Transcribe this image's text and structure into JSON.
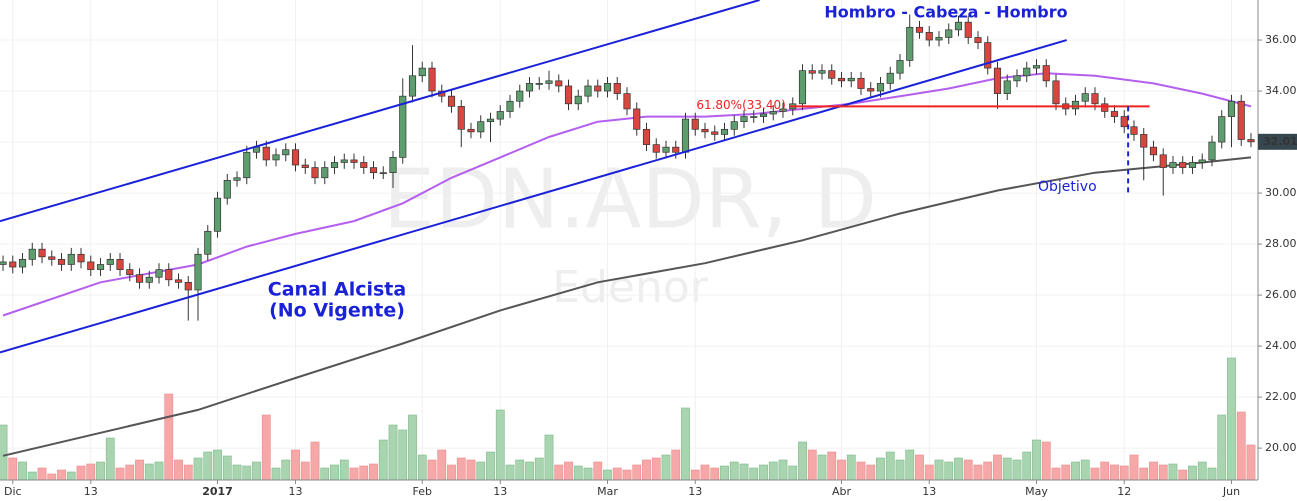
{
  "chart_data": {
    "type": "candlestick",
    "watermark": "EDN.ADR, D",
    "subtitle": "Edenor",
    "categories": [
      null,
      "Dic",
      null,
      null,
      null,
      null,
      null,
      null,
      null,
      "13",
      null,
      null,
      null,
      null,
      null,
      null,
      null,
      null,
      null,
      null,
      null,
      null,
      "2017",
      null,
      null,
      null,
      null,
      null,
      null,
      null,
      "13",
      null,
      null,
      null,
      null,
      null,
      null,
      null,
      null,
      null,
      null,
      null,
      null,
      "Feb",
      null,
      null,
      null,
      null,
      null,
      null,
      null,
      "13",
      null,
      null,
      null,
      null,
      null,
      null,
      null,
      null,
      null,
      null,
      "Mar",
      null,
      null,
      null,
      null,
      null,
      null,
      null,
      null,
      "13",
      null,
      null,
      null,
      null,
      null,
      null,
      null,
      null,
      null,
      null,
      null,
      null,
      null,
      null,
      "Abr",
      null,
      null,
      null,
      null,
      null,
      null,
      null,
      null,
      "13",
      null,
      null,
      null,
      null,
      null,
      null,
      null,
      null,
      null,
      null,
      "May",
      null,
      null,
      null,
      null,
      null,
      null,
      null,
      null,
      "12",
      null,
      null,
      null,
      null,
      null,
      null,
      null,
      null,
      null,
      null,
      "Jun",
      null,
      null
    ],
    "open": [
      27.2,
      27.3,
      27.1,
      27.4,
      27.8,
      27.5,
      27.4,
      27.2,
      27.6,
      27.3,
      27.0,
      27.2,
      27.4,
      27.0,
      26.8,
      26.5,
      26.7,
      27.0,
      26.6,
      26.5,
      26.2,
      27.6,
      28.5,
      29.8,
      30.5,
      30.6,
      31.6,
      31.8,
      31.3,
      31.5,
      31.7,
      31.1,
      31.0,
      30.6,
      31.0,
      31.2,
      31.3,
      31.2,
      31.0,
      30.8,
      30.8,
      31.4,
      33.8,
      34.6,
      34.9,
      34.0,
      33.8,
      33.4,
      32.5,
      32.4,
      32.8,
      32.9,
      33.2,
      33.6,
      34.0,
      34.3,
      34.3,
      34.4,
      34.2,
      33.5,
      33.8,
      34.2,
      34.0,
      34.3,
      33.9,
      33.3,
      32.5,
      31.9,
      31.6,
      31.8,
      31.6,
      32.9,
      32.5,
      32.4,
      32.3,
      32.5,
      32.8,
      33.0,
      33.0,
      33.1,
      33.2,
      33.3,
      33.5,
      34.8,
      34.7,
      34.8,
      34.5,
      34.4,
      34.5,
      34.1,
      34.0,
      34.3,
      34.7,
      35.2,
      36.5,
      36.3,
      36.0,
      36.1,
      36.4,
      36.7,
      36.1,
      35.9,
      34.9,
      33.9,
      34.4,
      34.6,
      34.9,
      35.0,
      34.4,
      33.5,
      33.3,
      33.6,
      33.9,
      33.5,
      33.2,
      33.0,
      32.6,
      32.3,
      31.8,
      31.5,
      31.0,
      31.2,
      31.0,
      31.2,
      31.3,
      32.0,
      33.0,
      33.6,
      32.1
    ],
    "high": [
      27.55,
      27.55,
      27.65,
      28.05,
      28.05,
      27.75,
      27.65,
      27.85,
      27.85,
      27.55,
      27.45,
      27.65,
      27.65,
      27.25,
      27.05,
      26.95,
      27.25,
      27.25,
      26.85,
      26.75,
      27.85,
      28.75,
      30.05,
      30.75,
      30.85,
      31.85,
      32.05,
      32.05,
      31.75,
      31.95,
      31.95,
      31.35,
      31.25,
      31.25,
      31.45,
      31.55,
      31.55,
      31.45,
      31.25,
      31.05,
      31.65,
      34.5,
      35.8,
      35.15,
      35.15,
      34.25,
      34.05,
      33.65,
      32.75,
      33.05,
      33.15,
      33.45,
      33.85,
      34.25,
      34.55,
      34.55,
      34.8,
      34.65,
      34.45,
      34.05,
      34.45,
      34.45,
      34.55,
      34.55,
      34.15,
      33.55,
      32.75,
      32.15,
      32.05,
      32.05,
      33.15,
      33.15,
      32.75,
      32.65,
      32.75,
      33.05,
      33.25,
      33.25,
      33.35,
      33.45,
      33.55,
      33.75,
      35.05,
      35.05,
      35.05,
      35.05,
      34.75,
      34.75,
      34.75,
      34.35,
      34.55,
      34.95,
      35.45,
      37.0,
      36.75,
      36.55,
      36.35,
      36.65,
      36.95,
      36.95,
      36.35,
      36.15,
      35.15,
      34.65,
      34.85,
      35.15,
      35.25,
      35.25,
      34.65,
      33.75,
      33.85,
      34.15,
      34.15,
      33.75,
      33.45,
      33.25,
      32.85,
      32.55,
      32.05,
      31.75,
      31.45,
      31.45,
      31.45,
      31.55,
      32.25,
      33.25,
      33.85,
      33.85,
      32.35
    ],
    "low": [
      26.95,
      26.85,
      26.85,
      27.15,
      27.25,
      27.15,
      26.95,
      26.95,
      27.05,
      26.75,
      26.75,
      26.95,
      26.75,
      26.55,
      26.25,
      26.25,
      26.45,
      26.35,
      26.25,
      25.0,
      25.0,
      27.35,
      28.25,
      29.55,
      30.25,
      30.35,
      31.35,
      31.05,
      31.05,
      31.25,
      30.85,
      30.75,
      30.35,
      30.35,
      30.75,
      30.95,
      30.95,
      30.75,
      30.55,
      30.55,
      30.2,
      31.15,
      33.55,
      34.35,
      33.75,
      33.55,
      33.15,
      31.8,
      32.15,
      32.15,
      32.0,
      32.65,
      32.95,
      33.35,
      33.75,
      34.05,
      34.05,
      33.95,
      33.25,
      33.25,
      33.55,
      33.75,
      33.75,
      33.65,
      33.05,
      32.25,
      31.65,
      31.35,
      31.35,
      31.35,
      31.35,
      32.25,
      32.15,
      32.05,
      32.05,
      32.25,
      32.55,
      32.75,
      32.75,
      32.85,
      32.95,
      33.05,
      33.25,
      34.45,
      34.45,
      34.25,
      34.15,
      34.15,
      33.85,
      33.75,
      33.75,
      34.05,
      34.45,
      34.95,
      36.05,
      35.75,
      35.75,
      35.85,
      36.15,
      35.85,
      35.65,
      34.65,
      33.3,
      33.65,
      34.15,
      34.35,
      34.65,
      34.15,
      33.25,
      33.05,
      33.05,
      33.35,
      33.25,
      32.95,
      32.75,
      32.35,
      32.05,
      30.5,
      31.25,
      29.9,
      30.75,
      30.75,
      30.75,
      30.95,
      31.05,
      31.75,
      31.8,
      31.85,
      31.8
    ],
    "close": [
      27.3,
      27.1,
      27.4,
      27.8,
      27.5,
      27.4,
      27.2,
      27.6,
      27.3,
      27.0,
      27.2,
      27.4,
      27.0,
      26.8,
      26.5,
      26.7,
      27.0,
      26.6,
      26.5,
      26.2,
      27.6,
      28.5,
      29.8,
      30.5,
      30.6,
      31.6,
      31.8,
      31.3,
      31.5,
      31.7,
      31.1,
      31.0,
      30.6,
      31.0,
      31.2,
      31.3,
      31.2,
      31.0,
      30.8,
      30.8,
      31.4,
      33.8,
      34.6,
      34.9,
      34.0,
      33.8,
      33.4,
      32.5,
      32.4,
      32.8,
      32.9,
      33.2,
      33.6,
      34.0,
      34.3,
      34.3,
      34.4,
      34.2,
      33.5,
      33.8,
      34.2,
      34.0,
      34.3,
      33.9,
      33.3,
      32.5,
      31.9,
      31.6,
      31.8,
      31.6,
      32.9,
      32.5,
      32.4,
      32.3,
      32.5,
      32.8,
      33.0,
      33.0,
      33.1,
      33.2,
      33.3,
      33.5,
      34.8,
      34.7,
      34.8,
      34.5,
      34.4,
      34.5,
      34.1,
      34.0,
      34.3,
      34.7,
      35.2,
      36.5,
      36.3,
      36.0,
      36.1,
      36.4,
      36.7,
      36.1,
      35.9,
      34.9,
      33.9,
      34.4,
      34.6,
      34.9,
      35.0,
      34.4,
      33.5,
      33.3,
      33.6,
      33.9,
      33.5,
      33.2,
      33.0,
      32.6,
      32.3,
      31.8,
      31.5,
      31.0,
      31.2,
      31.0,
      31.2,
      31.3,
      32.0,
      33.0,
      33.6,
      32.1,
      32.01
    ],
    "volume": [
      55,
      22,
      18,
      8,
      12,
      6,
      10,
      8,
      14,
      16,
      18,
      42,
      12,
      15,
      20,
      16,
      18,
      86,
      20,
      15,
      22,
      28,
      30,
      24,
      15,
      14,
      18,
      65,
      12,
      20,
      30,
      18,
      38,
      12,
      15,
      20,
      12,
      14,
      16,
      40,
      55,
      50,
      65,
      25,
      20,
      30,
      15,
      22,
      20,
      18,
      28,
      70,
      15,
      20,
      18,
      22,
      45,
      15,
      18,
      14,
      12,
      18,
      10,
      12,
      10,
      15,
      20,
      22,
      25,
      30,
      72,
      10,
      15,
      12,
      14,
      18,
      16,
      12,
      15,
      18,
      20,
      14,
      38,
      30,
      25,
      28,
      20,
      25,
      18,
      15,
      22,
      28,
      20,
      30,
      25,
      15,
      20,
      18,
      22,
      20,
      15,
      18,
      25,
      22,
      20,
      28,
      40,
      38,
      12,
      15,
      18,
      20,
      12,
      18,
      15,
      14,
      25,
      12,
      18,
      15,
      16,
      10,
      14,
      18,
      12,
      65,
      122,
      68,
      35
    ],
    "up_color": "#5e9e6e",
    "down_color": "#d9463f",
    "volume_up_color": "#a9d4b0",
    "volume_down_color": "#f6a8a8",
    "overlays": [
      {
        "color": "#b45ff0",
        "x": [
          0,
          10,
          20,
          25,
          30,
          36,
          41,
          46,
          51,
          56,
          61,
          66,
          72,
          77,
          82,
          87,
          92,
          97,
          102,
          107,
          112,
          118,
          123,
          128
        ],
        "values": [
          25.2,
          26.5,
          27.2,
          27.9,
          28.4,
          28.9,
          29.6,
          30.6,
          31.4,
          32.2,
          32.8,
          33.0,
          33.0,
          33.1,
          33.3,
          33.5,
          33.8,
          34.1,
          34.5,
          34.7,
          34.6,
          34.3,
          33.9,
          33.4
        ]
      },
      {
        "color": "#555555",
        "x": [
          0,
          10,
          20,
          30,
          41,
          51,
          61,
          72,
          82,
          92,
          102,
          112,
          123,
          128
        ],
        "values": [
          19.7,
          20.6,
          21.5,
          22.75,
          24.1,
          25.4,
          26.5,
          27.25,
          28.15,
          29.2,
          30.1,
          30.8,
          31.2,
          31.4
        ]
      }
    ],
    "lines": [
      {
        "color": "#1a22d8",
        "x": [
          -0.31,
          77.6
        ],
        "y": [
          28.9,
          37.57
        ]
      },
      {
        "color": "#1a22d8",
        "x": [
          -0.31,
          109.1
        ],
        "y": [
          23.75,
          36.0
        ]
      },
      {
        "color": "#ee2222",
        "x": [
          80.7,
          117.6
        ],
        "y": [
          33.4,
          33.4
        ],
        "label": "61.80%(33.40)"
      },
      {
        "color": "#1a22d8",
        "x": [
          115.4,
          115.4
        ],
        "y": [
          33.4,
          30.0
        ],
        "dashed": true
      }
    ],
    "annotations": [
      "Hombro - Cabeza - Hombro",
      "Canal Alcista",
      "(No Vigente)",
      "Objetivo"
    ],
    "xlim": [
      -0.31,
      128.72
    ],
    "ylim": [
      18.75,
      37.57
    ],
    "yticks": [
      {
        "value": 20,
        "label": "20.00"
      },
      {
        "value": 22,
        "label": "22.00"
      },
      {
        "value": 24,
        "label": "24.00"
      },
      {
        "value": 26,
        "label": "26.00"
      },
      {
        "value": 28,
        "label": "28.00"
      },
      {
        "value": 30,
        "label": "30.00"
      },
      {
        "value": 32,
        "label": "32.00"
      },
      {
        "value": 34,
        "label": "34.00"
      },
      {
        "value": 36,
        "label": "36.00"
      }
    ],
    "grid": true
  }
}
